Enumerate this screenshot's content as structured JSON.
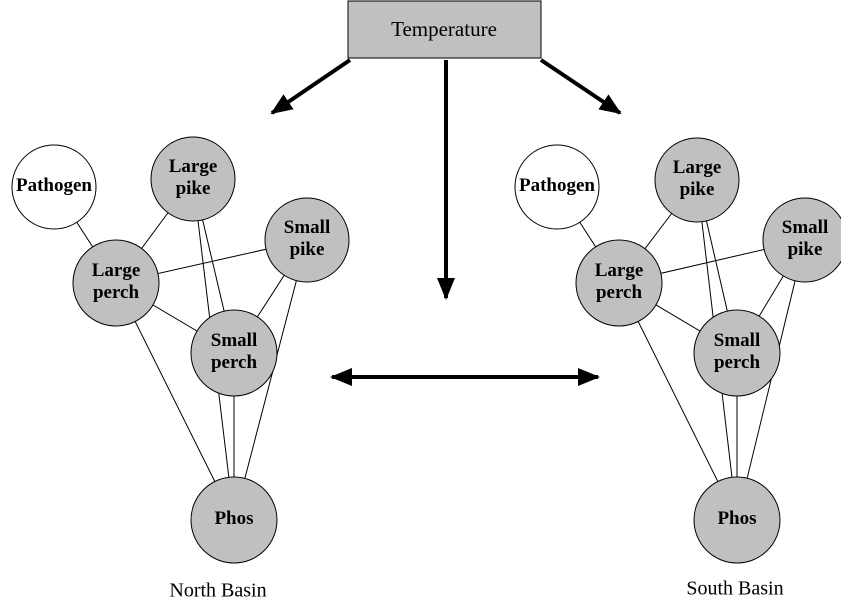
{
  "header": {
    "title": "Temperature"
  },
  "basins": [
    {
      "label": "North Basin",
      "nodes": [
        {
          "label": [
            "Pathogen"
          ]
        },
        {
          "label": [
            "Large",
            "pike"
          ]
        },
        {
          "label": [
            "Small",
            "pike"
          ]
        },
        {
          "label": [
            "Large",
            "perch"
          ]
        },
        {
          "label": [
            "Small",
            "perch"
          ]
        },
        {
          "label": [
            "Phos"
          ]
        }
      ]
    },
    {
      "label": "South Basin",
      "nodes": [
        {
          "label": [
            "Pathogen"
          ]
        },
        {
          "label": [
            "Large",
            "pike"
          ]
        },
        {
          "label": [
            "Small",
            "pike"
          ]
        },
        {
          "label": [
            "Large",
            "perch"
          ]
        },
        {
          "label": [
            "Small",
            "perch"
          ]
        },
        {
          "label": [
            "Phos"
          ]
        }
      ]
    }
  ]
}
